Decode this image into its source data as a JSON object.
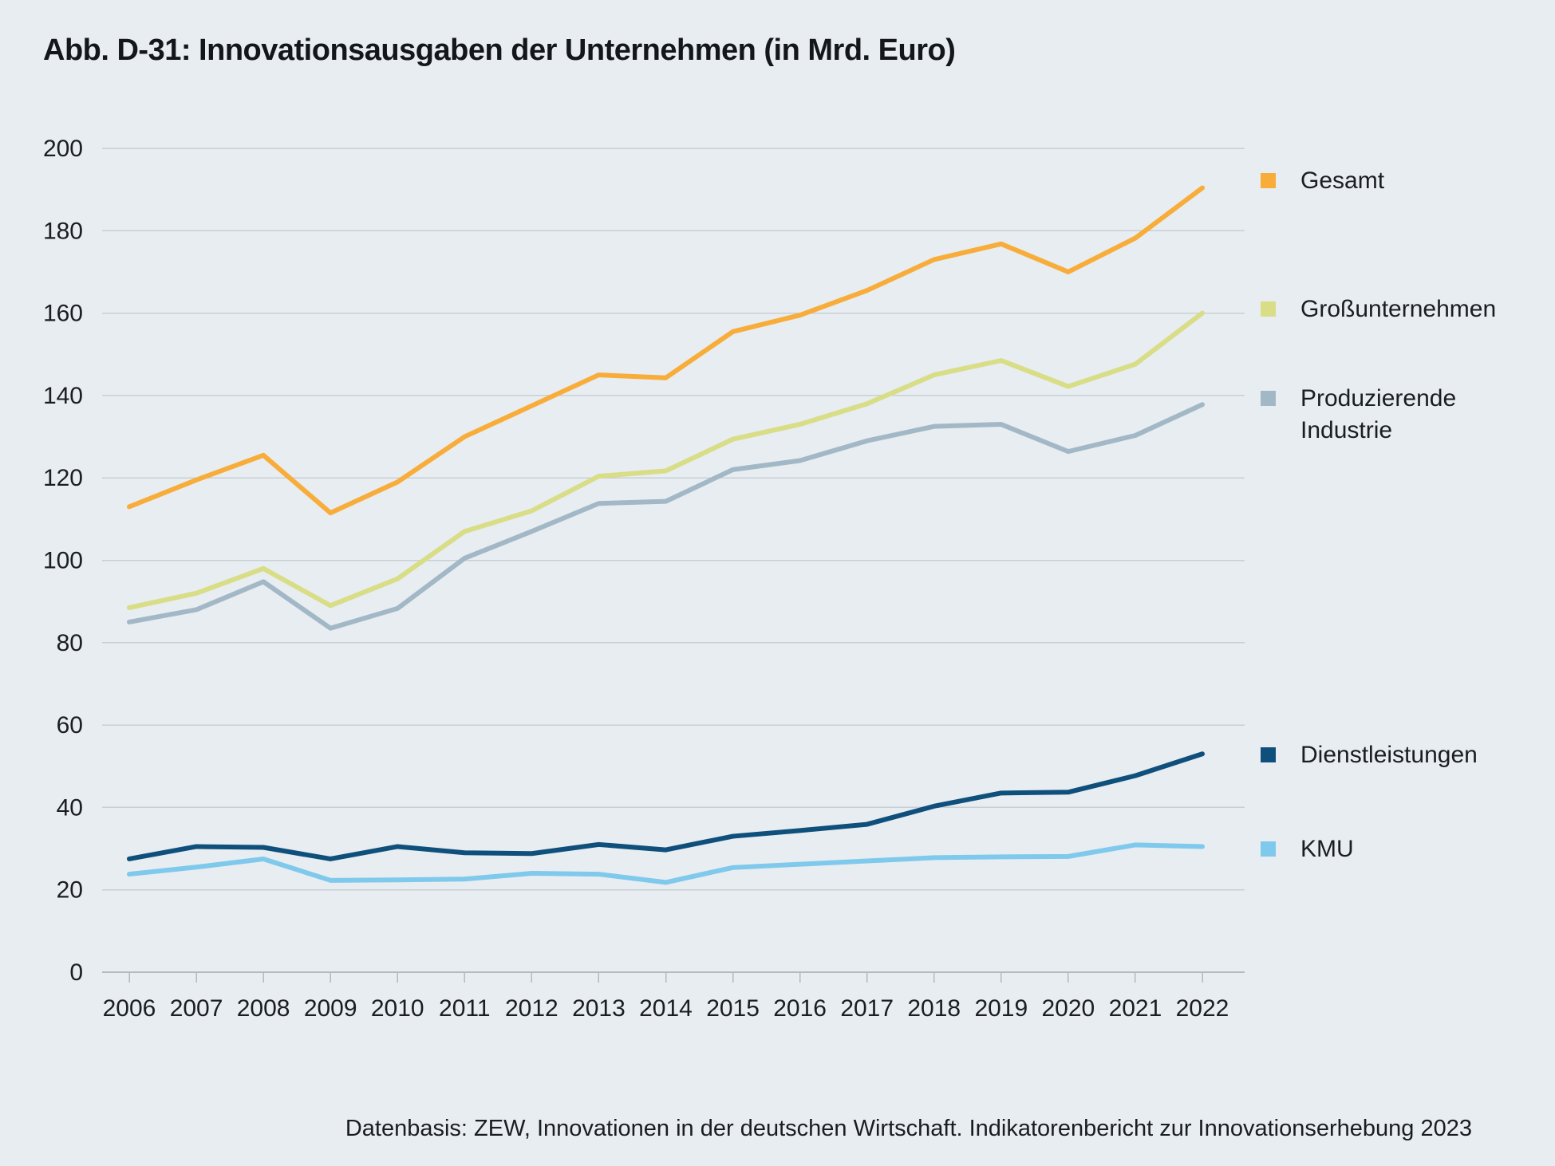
{
  "title": "Abb. D-31: Innovationsausgaben der Unternehmen (in Mrd. Euro)",
  "source_note": "Datenbasis: ZEW, Innovationen in der deutschen Wirtschaft. Indikatorenbericht zur Innovationserhebung 2023",
  "colors": {
    "background": "#e7edf0",
    "grid": "#c9d0d5",
    "axis": "#b3bbc1",
    "text": "#1a1d21"
  },
  "chart_data": {
    "type": "line",
    "title": "Abb. D-31: Innovationsausgaben der Unternehmen (in Mrd. Euro)",
    "xlabel": "",
    "ylabel": "Mrd. Euro",
    "ylim": [
      0,
      200
    ],
    "ytick_step": 20,
    "grid": true,
    "legend_position": "right",
    "x": [
      2006,
      2007,
      2008,
      2009,
      2010,
      2011,
      2012,
      2013,
      2014,
      2015,
      2016,
      2017,
      2018,
      2019,
      2020,
      2021,
      2022
    ],
    "series": [
      {
        "id": "gesamt",
        "name": "Gesamt",
        "color": "#f8ad3b",
        "values": [
          113,
          119.5,
          125.5,
          111.5,
          119,
          130,
          137.5,
          145,
          144.3,
          155.5,
          159.5,
          165.5,
          173,
          176.8,
          170,
          178.2,
          190.4
        ]
      },
      {
        "id": "grossunternehmen",
        "name": "Großunternehmen",
        "color": "#d8dd86",
        "values": [
          88.5,
          92,
          98,
          89,
          95.5,
          107,
          112,
          120.4,
          121.7,
          129.4,
          133,
          138,
          145,
          148.5,
          142.2,
          147.6,
          160
        ]
      },
      {
        "id": "produzierende-industrie",
        "name": "Produzierende Industrie",
        "color": "#a3b8c6",
        "values": [
          85,
          88,
          94.8,
          83.5,
          88.3,
          100.5,
          107,
          113.8,
          114.3,
          122,
          124.2,
          129,
          132.5,
          133,
          126.4,
          130.3,
          137.8
        ]
      },
      {
        "id": "dienstleistungen",
        "name": "Dienstleistungen",
        "color": "#0f4f7c",
        "values": [
          27.5,
          30.5,
          30.3,
          27.5,
          30.5,
          29,
          28.8,
          31,
          29.7,
          33,
          34.4,
          35.9,
          40.3,
          43.5,
          43.7,
          47.7,
          53
        ]
      },
      {
        "id": "kmu",
        "name": "KMU",
        "color": "#7fc9ec",
        "values": [
          23.8,
          25.5,
          27.5,
          22.3,
          22.4,
          22.6,
          24,
          23.8,
          21.8,
          25.4,
          26.2,
          27,
          27.8,
          28,
          28.1,
          30.9,
          30.5
        ]
      }
    ]
  },
  "legend": {
    "items": [
      {
        "label": "Gesamt",
        "color": "#f8ad3b"
      },
      {
        "label": "Großunternehmen",
        "color": "#d8dd86"
      },
      {
        "label": "Produzierende\nIndustrie",
        "color": "#a3b8c6"
      },
      {
        "label": "Dienstleistungen",
        "color": "#0f4f7c"
      },
      {
        "label": "KMU",
        "color": "#7fc9ec"
      }
    ]
  }
}
